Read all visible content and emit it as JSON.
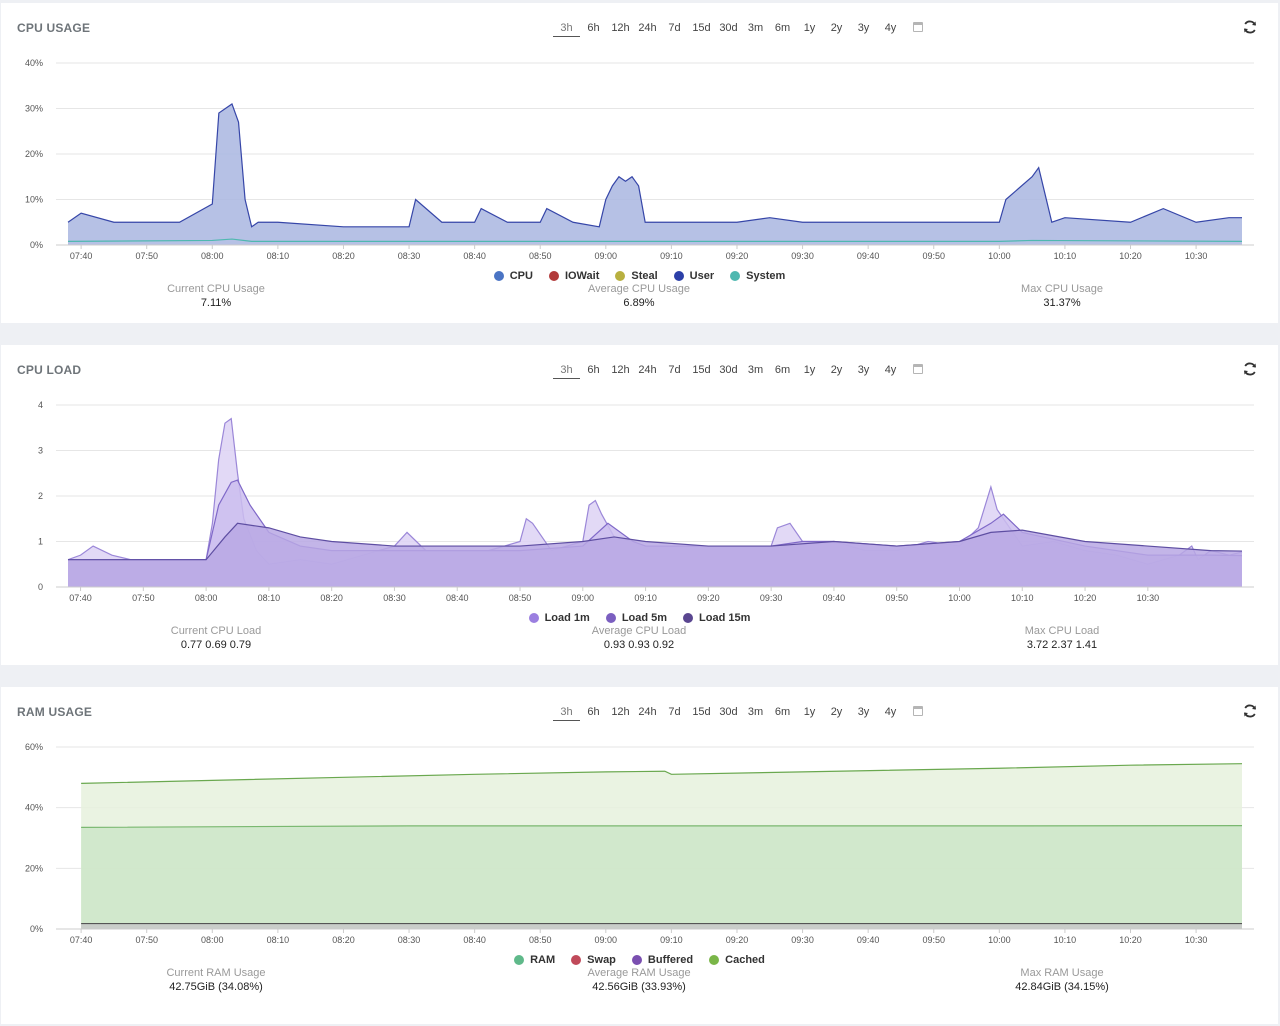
{
  "time_ranges": [
    "3h",
    "6h",
    "12h",
    "24h",
    "7d",
    "15d",
    "30d",
    "3m",
    "6m",
    "1y",
    "2y",
    "3y",
    "4y"
  ],
  "active_range": "3h",
  "icons": {
    "calendar": "calendar-icon",
    "refresh": "refresh-icon"
  },
  "panels": {
    "cpu": {
      "title": "CPU USAGE",
      "stats": [
        {
          "label": "Current CPU Usage",
          "value": "7.11%"
        },
        {
          "label": "Average CPU Usage",
          "value": "6.89%"
        },
        {
          "label": "Max CPU Usage",
          "value": "31.37%"
        }
      ]
    },
    "load": {
      "title": "CPU LOAD",
      "stats": [
        {
          "label": "Current CPU Load",
          "value": "0.77 0.69 0.79"
        },
        {
          "label": "Average CPU Load",
          "value": "0.93 0.93 0.92"
        },
        {
          "label": "Max CPU Load",
          "value": "3.72 2.37 1.41"
        }
      ]
    },
    "ram": {
      "title": "RAM USAGE",
      "stats": [
        {
          "label": "Current RAM Usage",
          "value": "42.75GiB (34.08%)"
        },
        {
          "label": "Average RAM Usage",
          "value": "42.56GiB (33.93%)"
        },
        {
          "label": "Max RAM Usage",
          "value": "42.84GiB (34.15%)"
        }
      ]
    }
  },
  "chart_data": [
    {
      "id": "cpu",
      "type": "area",
      "title": "CPU USAGE",
      "x_ticks": [
        "07:40",
        "07:50",
        "08:00",
        "08:10",
        "08:20",
        "08:30",
        "08:40",
        "08:50",
        "09:00",
        "09:10",
        "09:20",
        "09:30",
        "09:40",
        "09:50",
        "10:00",
        "10:10",
        "10:20",
        "10:30"
      ],
      "x_range": [
        "07:38",
        "10:37"
      ],
      "y_ticks": [
        "0%",
        "10%",
        "20%",
        "30%",
        "40%"
      ],
      "ylim": [
        0,
        40
      ],
      "legend_position": "bottom",
      "legend": [
        {
          "name": "CPU",
          "color": "#4a74c4"
        },
        {
          "name": "IOWait",
          "color": "#b23a3a"
        },
        {
          "name": "Steal",
          "color": "#b8b040"
        },
        {
          "name": "User",
          "color": "#2c3fa8"
        },
        {
          "name": "System",
          "color": "#4fb8b0"
        }
      ],
      "series": [
        {
          "name": "User",
          "color": "#3646a8",
          "fill": "#a9b6e0",
          "times": [
            "07:38",
            "07:40",
            "07:45",
            "07:50",
            "07:55",
            "08:00",
            "08:01",
            "08:02",
            "08:03",
            "08:04",
            "08:05",
            "08:06",
            "08:07",
            "08:10",
            "08:20",
            "08:25",
            "08:30",
            "08:31",
            "08:35",
            "08:40",
            "08:41",
            "08:45",
            "08:50",
            "08:51",
            "08:55",
            "08:59",
            "09:00",
            "09:01",
            "09:02",
            "09:03",
            "09:04",
            "09:05",
            "09:06",
            "09:10",
            "09:20",
            "09:25",
            "09:30",
            "09:40",
            "09:45",
            "09:50",
            "09:55",
            "10:00",
            "10:01",
            "10:05",
            "10:06",
            "10:07",
            "10:08",
            "10:10",
            "10:20",
            "10:25",
            "10:30",
            "10:35",
            "10:37"
          ],
          "values": [
            5,
            7,
            5,
            5,
            5,
            9,
            29,
            30,
            31,
            27,
            10,
            4,
            5,
            5,
            4,
            4,
            4,
            10,
            5,
            5,
            8,
            5,
            5,
            8,
            5,
            4,
            10,
            13,
            15,
            14,
            15,
            13,
            5,
            5,
            5,
            6,
            5,
            5,
            5,
            5,
            5,
            5,
            10,
            15,
            17,
            11,
            5,
            6,
            5,
            8,
            5,
            6,
            6
          ]
        },
        {
          "name": "System",
          "color": "#4fb8b0",
          "fill": "none",
          "times": [
            "07:38",
            "08:00",
            "08:03",
            "08:06",
            "08:30",
            "09:00",
            "09:30",
            "10:00",
            "10:05",
            "10:37"
          ],
          "values": [
            0.8,
            1,
            1.3,
            0.8,
            0.8,
            0.8,
            0.8,
            0.8,
            1,
            0.8
          ]
        }
      ]
    },
    {
      "id": "load",
      "type": "area",
      "title": "CPU LOAD",
      "x_ticks": [
        "07:40",
        "07:50",
        "08:00",
        "08:10",
        "08:20",
        "08:30",
        "08:40",
        "08:50",
        "09:00",
        "09:10",
        "09:20",
        "09:30",
        "09:40",
        "09:50",
        "10:00",
        "10:10",
        "10:20",
        "10:30"
      ],
      "x_range": [
        "07:38",
        "10:45"
      ],
      "y_ticks": [
        "0",
        "1",
        "2",
        "3",
        "4"
      ],
      "ylim": [
        0,
        4
      ],
      "legend_position": "bottom",
      "legend": [
        {
          "name": "Load 1m",
          "color": "#9b7fe0"
        },
        {
          "name": "Load 5m",
          "color": "#7b5fc0"
        },
        {
          "name": "Load 15m",
          "color": "#5a4690"
        }
      ],
      "series": [
        {
          "name": "Load 1m",
          "color": "#9b87d8",
          "fill": "#ddd2f4",
          "times": [
            "07:38",
            "07:40",
            "07:42",
            "07:45",
            "07:48",
            "07:50",
            "07:55",
            "08:00",
            "08:01",
            "08:02",
            "08:03",
            "08:04",
            "08:05",
            "08:06",
            "08:08",
            "08:10",
            "08:15",
            "08:20",
            "08:25",
            "08:30",
            "08:32",
            "08:35",
            "08:40",
            "08:45",
            "08:50",
            "08:51",
            "08:52",
            "08:55",
            "09:00",
            "09:01",
            "09:02",
            "09:03",
            "09:05",
            "09:08",
            "09:10",
            "09:20",
            "09:30",
            "09:31",
            "09:33",
            "09:35",
            "09:40",
            "09:45",
            "09:50",
            "09:55",
            "10:00",
            "10:03",
            "10:05",
            "10:06",
            "10:08",
            "10:10",
            "10:15",
            "10:20",
            "10:25",
            "10:30",
            "10:35",
            "10:37",
            "10:38",
            "10:40",
            "10:43",
            "10:45"
          ],
          "values": [
            0.6,
            0.7,
            0.9,
            0.7,
            0.6,
            0.6,
            0.6,
            0.6,
            1.4,
            2.8,
            3.6,
            3.7,
            2.5,
            1.5,
            0.8,
            0.5,
            0.6,
            0.5,
            0.7,
            0.9,
            1.2,
            0.8,
            0.8,
            0.8,
            1.0,
            1.5,
            1.4,
            0.8,
            1.0,
            1.8,
            1.9,
            1.6,
            1.1,
            1.0,
            0.9,
            0.9,
            0.9,
            1.3,
            1.4,
            1.0,
            1.0,
            0.8,
            0.8,
            1.0,
            0.9,
            1.3,
            2.2,
            1.7,
            1.3,
            0.9,
            1.0,
            0.8,
            0.7,
            0.5,
            0.7,
            0.9,
            0.6,
            0.8,
            0.7,
            0.77
          ]
        },
        {
          "name": "Load 5m",
          "color": "#7f68c8",
          "fill": "#cbbdee",
          "times": [
            "07:38",
            "07:50",
            "08:00",
            "08:02",
            "08:04",
            "08:05",
            "08:07",
            "08:10",
            "08:15",
            "08:20",
            "08:30",
            "08:40",
            "08:50",
            "09:00",
            "09:04",
            "09:08",
            "09:10",
            "09:20",
            "09:30",
            "09:35",
            "09:40",
            "09:50",
            "10:00",
            "10:05",
            "10:07",
            "10:10",
            "10:20",
            "10:30",
            "10:35",
            "10:40",
            "10:45"
          ],
          "values": [
            0.6,
            0.6,
            0.6,
            1.8,
            2.3,
            2.35,
            1.8,
            1.2,
            0.9,
            0.8,
            0.8,
            0.8,
            0.8,
            0.9,
            1.4,
            1.0,
            0.9,
            0.9,
            0.9,
            1.0,
            1.0,
            0.9,
            1.0,
            1.4,
            1.6,
            1.2,
            0.9,
            0.7,
            0.7,
            0.7,
            0.69
          ]
        },
        {
          "name": "Load 15m",
          "color": "#5e4ea2",
          "fill": "#b9a8e4",
          "times": [
            "07:38",
            "07:50",
            "08:00",
            "08:03",
            "08:05",
            "08:10",
            "08:15",
            "08:20",
            "08:30",
            "08:40",
            "08:50",
            "09:00",
            "09:05",
            "09:10",
            "09:20",
            "09:30",
            "09:40",
            "09:50",
            "10:00",
            "10:05",
            "10:10",
            "10:20",
            "10:30",
            "10:40",
            "10:45"
          ],
          "values": [
            0.6,
            0.6,
            0.6,
            1.1,
            1.4,
            1.3,
            1.1,
            1.0,
            0.9,
            0.9,
            0.9,
            1.0,
            1.1,
            1.0,
            0.9,
            0.9,
            1.0,
            0.9,
            1.0,
            1.2,
            1.25,
            1.0,
            0.9,
            0.8,
            0.79
          ]
        }
      ]
    },
    {
      "id": "ram",
      "type": "area",
      "title": "RAM USAGE",
      "x_ticks": [
        "07:40",
        "07:50",
        "08:00",
        "08:10",
        "08:20",
        "08:30",
        "08:40",
        "08:50",
        "09:00",
        "09:10",
        "09:20",
        "09:30",
        "09:40",
        "09:50",
        "10:00",
        "10:10",
        "10:20",
        "10:30"
      ],
      "x_range": [
        "07:38",
        "10:37"
      ],
      "y_ticks": [
        "0%",
        "20%",
        "40%",
        "60%"
      ],
      "ylim": [
        0,
        60
      ],
      "legend_position": "bottom",
      "legend": [
        {
          "name": "RAM",
          "color": "#5fb98a"
        },
        {
          "name": "Swap",
          "color": "#c04a5a"
        },
        {
          "name": "Buffered",
          "color": "#7a4fb0"
        },
        {
          "name": "Cached",
          "color": "#7ab648"
        }
      ],
      "series": [
        {
          "name": "Cached",
          "color": "#6aa84f",
          "fill": "#e6f1dd",
          "times": [
            "07:40",
            "08:00",
            "08:20",
            "08:40",
            "09:00",
            "09:09",
            "09:10",
            "09:30",
            "10:00",
            "10:20",
            "10:37"
          ],
          "values": [
            48,
            49,
            50,
            51,
            51.8,
            52,
            51,
            51.8,
            53,
            54,
            54.5
          ]
        },
        {
          "name": "RAM",
          "color": "#7ab870",
          "fill": "#cce5c8",
          "times": [
            "07:40",
            "08:30",
            "09:00",
            "10:00",
            "10:37"
          ],
          "values": [
            33.5,
            34,
            34,
            34,
            34.08
          ]
        },
        {
          "name": "Buffered",
          "color": "#555555",
          "fill": "#c8c8c8",
          "times": [
            "07:40",
            "10:37"
          ],
          "values": [
            1.8,
            1.8
          ]
        }
      ]
    }
  ]
}
